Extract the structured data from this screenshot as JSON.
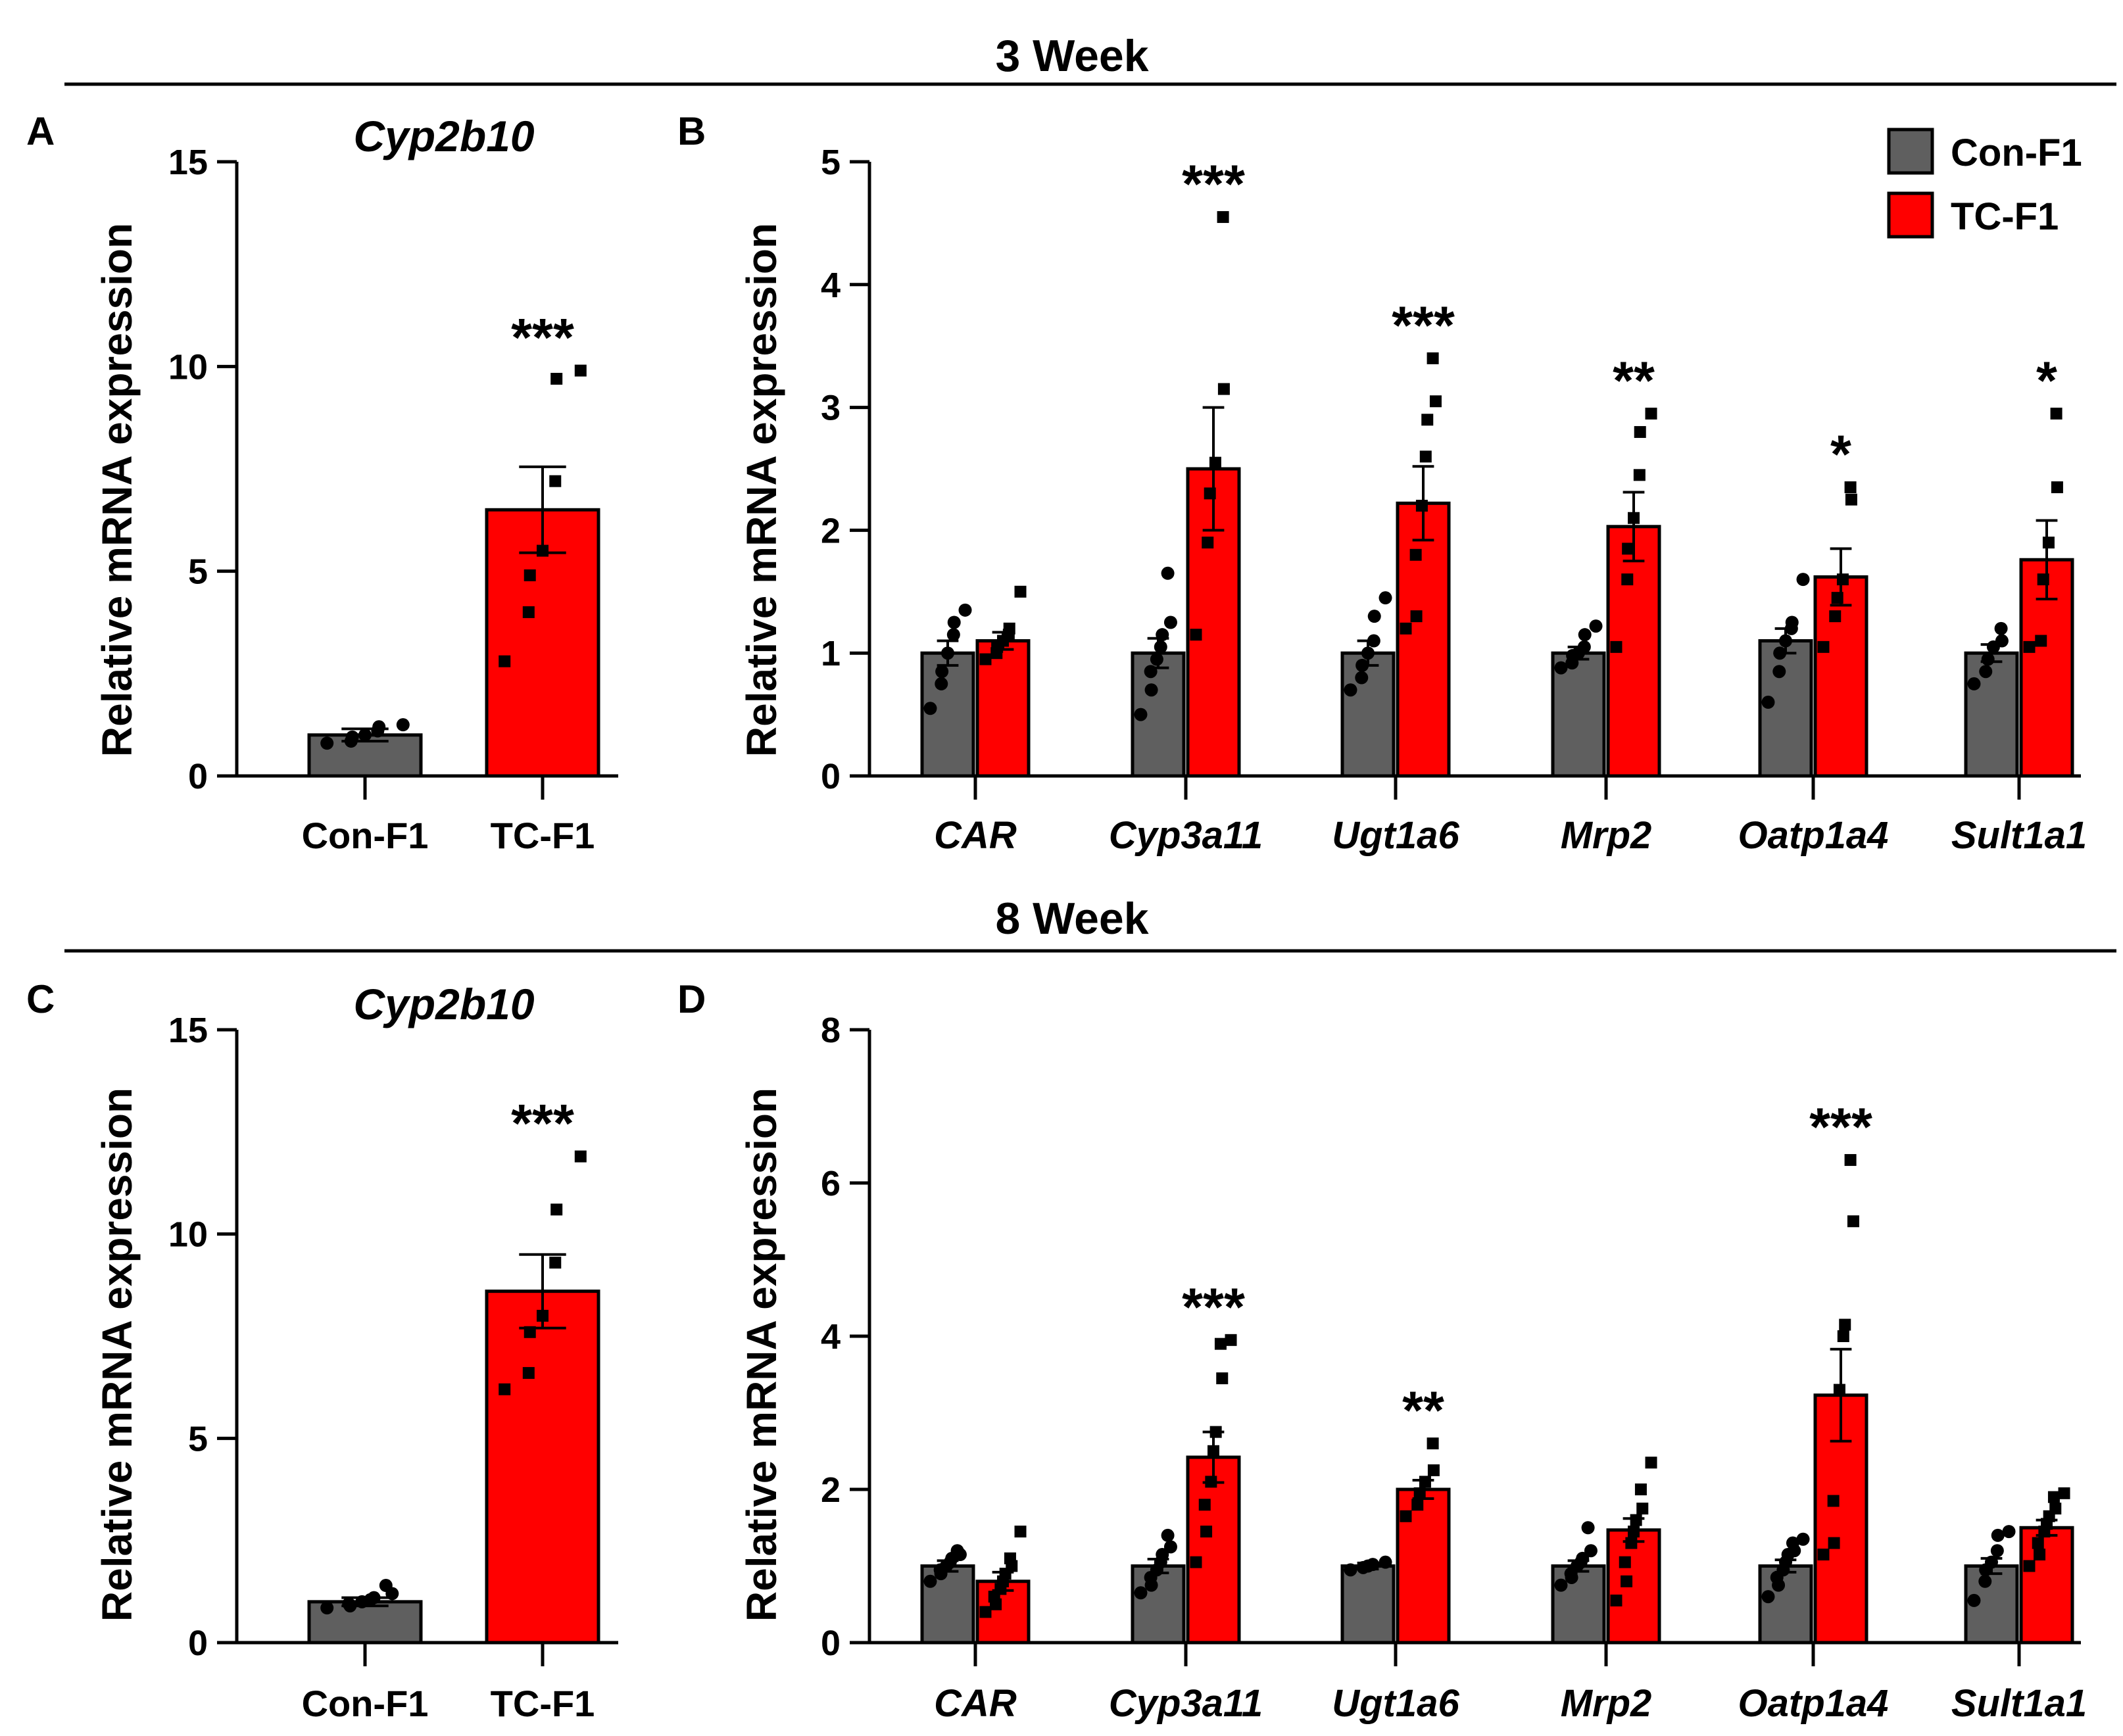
{
  "sections": [
    {
      "title": "3 Week"
    },
    {
      "title": "8 Week"
    }
  ],
  "legend": [
    {
      "label": "Con-F1",
      "color": "#5f5f5f"
    },
    {
      "label": "TC-F1",
      "color": "#ff0000"
    }
  ],
  "chart_data": [
    {
      "id": "A",
      "letter": "A",
      "type": "bar",
      "title": "Cyp2b10",
      "ylabel": "Relative mRNA expression",
      "ylim": [
        0,
        15
      ],
      "yticks": [
        0,
        5,
        10,
        15
      ],
      "categories": [
        "Con-F1",
        "TC-F1"
      ],
      "category_italic": false,
      "series": [
        {
          "name": "Con-F1",
          "values": [
            1.0,
            6.5
          ]
        }
      ],
      "bars": [
        {
          "group": "Con-F1",
          "series": "Con-F1",
          "value": 1.0,
          "sem": 0.15,
          "marker": "circle",
          "points": [
            0.8,
            0.85,
            0.95,
            1.0,
            1.1,
            1.2,
            1.25
          ],
          "sig": ""
        },
        {
          "group": "TC-F1",
          "series": "TC-F1",
          "value": 6.5,
          "sem": 1.05,
          "marker": "square",
          "points": [
            2.8,
            4.0,
            4.9,
            5.5,
            7.2,
            9.7,
            9.9
          ],
          "sig": "***"
        }
      ]
    },
    {
      "id": "B",
      "letter": "B",
      "type": "bar",
      "title": "",
      "ylabel": "Relative mRNA expression",
      "ylim": [
        0,
        5
      ],
      "yticks": [
        0,
        1,
        2,
        3,
        4,
        5
      ],
      "categories": [
        "CAR",
        "Cyp3a11",
        "Ugt1a6",
        "Mrp2",
        "Oatp1a4",
        "Sult1a1"
      ],
      "category_italic": true,
      "series": [
        {
          "name": "Con-F1",
          "values": [
            1.0,
            1.0,
            1.0,
            1.0,
            1.1,
            1.0
          ]
        },
        {
          "name": "TC-F1",
          "values": [
            1.1,
            2.5,
            2.22,
            2.03,
            1.62,
            1.76
          ]
        }
      ],
      "bars": [
        {
          "group": "CAR",
          "series": "Con-F1",
          "value": 1.0,
          "sem": 0.1,
          "marker": "circle",
          "points": [
            0.55,
            0.75,
            0.85,
            1.0,
            1.15,
            1.25,
            1.35
          ],
          "sig": ""
        },
        {
          "group": "CAR",
          "series": "TC-F1",
          "value": 1.1,
          "sem": 0.07,
          "marker": "square",
          "points": [
            0.95,
            1.0,
            1.05,
            1.1,
            1.15,
            1.2,
            1.5
          ],
          "sig": ""
        },
        {
          "group": "Cyp3a11",
          "series": "Con-F1",
          "value": 1.0,
          "sem": 0.12,
          "marker": "circle",
          "points": [
            0.5,
            0.7,
            0.85,
            0.95,
            1.05,
            1.15,
            1.25,
            1.65
          ],
          "sig": ""
        },
        {
          "group": "Cyp3a11",
          "series": "TC-F1",
          "value": 2.5,
          "sem": 0.5,
          "marker": "square",
          "points": [
            1.15,
            1.9,
            2.3,
            2.55,
            3.15,
            4.55
          ],
          "sig": "***"
        },
        {
          "group": "Ugt1a6",
          "series": "Con-F1",
          "value": 1.0,
          "sem": 0.1,
          "marker": "circle",
          "points": [
            0.7,
            0.8,
            0.9,
            1.0,
            1.1,
            1.3,
            1.45
          ],
          "sig": ""
        },
        {
          "group": "Ugt1a6",
          "series": "TC-F1",
          "value": 2.22,
          "sem": 0.3,
          "marker": "square",
          "points": [
            1.2,
            1.3,
            1.8,
            2.2,
            2.6,
            2.9,
            3.05,
            3.4
          ],
          "sig": "***"
        },
        {
          "group": "Mrp2",
          "series": "Con-F1",
          "value": 1.0,
          "sem": 0.05,
          "marker": "circle",
          "points": [
            0.88,
            0.92,
            0.98,
            1.0,
            1.05,
            1.15,
            1.22
          ],
          "sig": ""
        },
        {
          "group": "Mrp2",
          "series": "TC-F1",
          "value": 2.03,
          "sem": 0.28,
          "marker": "square",
          "points": [
            1.05,
            1.6,
            1.85,
            2.1,
            2.45,
            2.8,
            2.95
          ],
          "sig": "**"
        },
        {
          "group": "Oatp1a4",
          "series": "Con-F1",
          "value": 1.1,
          "sem": 0.1,
          "marker": "circle",
          "points": [
            0.6,
            0.85,
            1.0,
            1.1,
            1.2,
            1.25,
            1.6
          ],
          "sig": ""
        },
        {
          "group": "Oatp1a4",
          "series": "TC-F1",
          "value": 1.62,
          "sem": 0.23,
          "marker": "square",
          "points": [
            1.05,
            1.3,
            1.45,
            1.6,
            2.25,
            2.35
          ],
          "sig": "*"
        },
        {
          "group": "Sult1a1",
          "series": "Con-F1",
          "value": 1.0,
          "sem": 0.07,
          "marker": "circle",
          "points": [
            0.75,
            0.85,
            0.95,
            1.05,
            1.1,
            1.2
          ],
          "sig": ""
        },
        {
          "group": "Sult1a1",
          "series": "TC-F1",
          "value": 1.76,
          "sem": 0.32,
          "marker": "square",
          "points": [
            1.05,
            1.1,
            1.6,
            1.9,
            2.35,
            2.95
          ],
          "sig": "*"
        }
      ]
    },
    {
      "id": "C",
      "letter": "C",
      "type": "bar",
      "title": "Cyp2b10",
      "ylabel": "Relative mRNA expression",
      "ylim": [
        0,
        15
      ],
      "yticks": [
        0,
        5,
        10,
        15
      ],
      "categories": [
        "Con-F1",
        "TC-F1"
      ],
      "category_italic": false,
      "series": [
        {
          "name": "Con-F1",
          "values": [
            1.0,
            8.6
          ]
        }
      ],
      "bars": [
        {
          "group": "Con-F1",
          "series": "Con-F1",
          "value": 1.0,
          "sem": 0.1,
          "marker": "circle",
          "points": [
            0.85,
            0.9,
            0.95,
            1.0,
            1.05,
            1.1,
            1.2,
            1.4
          ],
          "sig": ""
        },
        {
          "group": "TC-F1",
          "series": "TC-F1",
          "value": 8.6,
          "sem": 0.9,
          "marker": "square",
          "points": [
            6.2,
            6.6,
            7.6,
            8.0,
            9.3,
            10.6,
            11.9
          ],
          "sig": "***"
        }
      ]
    },
    {
      "id": "D",
      "letter": "D",
      "type": "bar",
      "title": "",
      "ylabel": "Relative mRNA expression",
      "ylim": [
        0,
        8
      ],
      "yticks": [
        0,
        2,
        4,
        6,
        8
      ],
      "categories": [
        "CAR",
        "Cyp3a11",
        "Ugt1a6",
        "Mrp2",
        "Oatp1a4",
        "Sult1a1"
      ],
      "category_italic": true,
      "series": [
        {
          "name": "Con-F1",
          "values": [
            1.0,
            1.0,
            1.0,
            1.0,
            1.0,
            1.0
          ]
        },
        {
          "name": "TC-F1",
          "values": [
            0.8,
            2.42,
            2.0,
            1.47,
            3.23,
            1.5
          ]
        }
      ],
      "bars": [
        {
          "group": "CAR",
          "series": "Con-F1",
          "value": 1.0,
          "sem": 0.07,
          "marker": "circle",
          "points": [
            0.8,
            0.9,
            0.95,
            1.0,
            1.05,
            1.1,
            1.15,
            1.2
          ],
          "sig": ""
        },
        {
          "group": "CAR",
          "series": "TC-F1",
          "value": 0.8,
          "sem": 0.12,
          "marker": "square",
          "points": [
            0.4,
            0.5,
            0.6,
            0.7,
            0.8,
            0.9,
            1.0,
            1.1,
            1.45
          ],
          "sig": ""
        },
        {
          "group": "Cyp3a11",
          "series": "Con-F1",
          "value": 1.0,
          "sem": 0.09,
          "marker": "circle",
          "points": [
            0.65,
            0.75,
            0.85,
            0.95,
            1.05,
            1.15,
            1.25,
            1.4
          ],
          "sig": ""
        },
        {
          "group": "Cyp3a11",
          "series": "TC-F1",
          "value": 2.42,
          "sem": 0.33,
          "marker": "square",
          "points": [
            1.05,
            1.45,
            1.8,
            2.1,
            2.5,
            2.75,
            3.45,
            3.9,
            3.95
          ],
          "sig": "***"
        },
        {
          "group": "Ugt1a6",
          "series": "Con-F1",
          "value": 1.0,
          "sem": 0.04,
          "marker": "circle",
          "points": [
            0.95,
            0.98,
            1.0,
            1.02,
            1.05
          ],
          "sig": ""
        },
        {
          "group": "Ugt1a6",
          "series": "TC-F1",
          "value": 2.0,
          "sem": 0.12,
          "marker": "square",
          "points": [
            1.65,
            1.8,
            1.95,
            2.1,
            2.25,
            2.6
          ],
          "sig": "**"
        },
        {
          "group": "Mrp2",
          "series": "Con-F1",
          "value": 1.0,
          "sem": 0.07,
          "marker": "circle",
          "points": [
            0.75,
            0.85,
            0.9,
            1.0,
            1.05,
            1.1,
            1.2,
            1.5
          ],
          "sig": ""
        },
        {
          "group": "Mrp2",
          "series": "TC-F1",
          "value": 1.47,
          "sem": 0.15,
          "marker": "square",
          "points": [
            0.55,
            0.8,
            1.05,
            1.3,
            1.45,
            1.6,
            1.75,
            2.0,
            2.35
          ],
          "sig": ""
        },
        {
          "group": "Oatp1a4",
          "series": "Con-F1",
          "value": 1.0,
          "sem": 0.08,
          "marker": "circle",
          "points": [
            0.6,
            0.75,
            0.85,
            0.95,
            1.05,
            1.15,
            1.2,
            1.3,
            1.35
          ],
          "sig": ""
        },
        {
          "group": "Oatp1a4",
          "series": "TC-F1",
          "value": 3.23,
          "sem": 0.6,
          "marker": "square",
          "points": [
            1.15,
            1.3,
            1.85,
            3.3,
            4.0,
            4.15,
            5.5,
            6.3
          ],
          "sig": "***"
        },
        {
          "group": "Sult1a1",
          "series": "Con-F1",
          "value": 1.0,
          "sem": 0.1,
          "marker": "circle",
          "points": [
            0.55,
            0.8,
            0.95,
            1.05,
            1.2,
            1.4,
            1.45
          ],
          "sig": ""
        },
        {
          "group": "Sult1a1",
          "series": "TC-F1",
          "value": 1.5,
          "sem": 0.1,
          "marker": "square",
          "points": [
            1.0,
            1.15,
            1.3,
            1.45,
            1.55,
            1.65,
            1.75,
            1.9,
            1.95
          ],
          "sig": ""
        }
      ]
    }
  ]
}
